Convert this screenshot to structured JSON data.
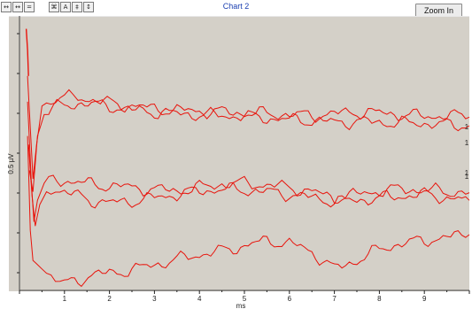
{
  "toolbar": {
    "buttons_left": [
      "↔",
      "↔",
      "="
    ],
    "buttons_mid": [
      "⌘",
      "A",
      "‡",
      "↕"
    ],
    "title": "Chart 2",
    "zoom_label": "Zoom In"
  },
  "chart_data": {
    "type": "line",
    "title": "Chart 2",
    "xlabel": "ms",
    "ylabel": "0.5 µV",
    "xlim": [
      0,
      10
    ],
    "x_ticks": [
      "1",
      "2",
      "3",
      "4",
      "5",
      "6",
      "7",
      "8",
      "9"
    ],
    "y_tick_count": 7,
    "series_end_labels": [
      "1",
      "1",
      "1",
      "1"
    ],
    "line_color": "#e8140c",
    "series": [
      {
        "values": [
          [
            0.18,
            0.9
          ],
          [
            0.25,
            0.2
          ],
          [
            0.3,
            -0.3
          ],
          [
            0.38,
            0.1
          ],
          [
            0.5,
            0.55
          ],
          [
            0.7,
            0.62
          ],
          [
            0.9,
            0.64
          ],
          [
            1.1,
            0.65
          ],
          [
            1.3,
            0.66
          ],
          [
            1.55,
            0.63
          ],
          [
            1.8,
            0.6
          ],
          [
            2.1,
            0.58
          ],
          [
            2.5,
            0.55
          ],
          [
            3.0,
            0.52
          ],
          [
            3.5,
            0.5
          ],
          [
            4.0,
            0.49
          ],
          [
            4.5,
            0.48
          ],
          [
            5.0,
            0.47
          ],
          [
            5.5,
            0.46
          ],
          [
            6.0,
            0.45
          ],
          [
            6.5,
            0.44
          ],
          [
            7.0,
            0.46
          ],
          [
            7.5,
            0.48
          ],
          [
            8.0,
            0.47
          ],
          [
            8.5,
            0.45
          ],
          [
            9.0,
            0.43
          ],
          [
            9.5,
            0.44
          ],
          [
            10.0,
            0.42
          ]
        ]
      },
      {
        "values": [
          [
            0.22,
            -0.2
          ],
          [
            0.3,
            -0.45
          ],
          [
            0.4,
            0.2
          ],
          [
            0.55,
            0.45
          ],
          [
            0.75,
            0.52
          ],
          [
            1.0,
            0.56
          ],
          [
            1.3,
            0.58
          ],
          [
            1.6,
            0.57
          ],
          [
            2.0,
            0.55
          ],
          [
            2.5,
            0.5
          ],
          [
            3.0,
            0.48
          ],
          [
            3.5,
            0.46
          ],
          [
            4.0,
            0.45
          ],
          [
            4.5,
            0.44
          ],
          [
            5.0,
            0.43
          ],
          [
            5.5,
            0.41
          ],
          [
            6.0,
            0.39
          ],
          [
            6.5,
            0.38
          ],
          [
            7.0,
            0.36
          ],
          [
            7.5,
            0.37
          ],
          [
            8.0,
            0.36
          ],
          [
            8.5,
            0.35
          ],
          [
            9.0,
            0.35
          ],
          [
            9.5,
            0.33
          ],
          [
            10.0,
            0.32
          ]
        ]
      },
      {
        "values": [
          [
            0.18,
            0.6
          ],
          [
            0.26,
            -0.3
          ],
          [
            0.32,
            -0.8
          ],
          [
            0.4,
            -0.55
          ],
          [
            0.55,
            -0.35
          ],
          [
            0.75,
            -0.3
          ],
          [
            1.0,
            -0.32
          ],
          [
            1.3,
            -0.34
          ],
          [
            1.6,
            -0.36
          ],
          [
            2.0,
            -0.38
          ],
          [
            2.5,
            -0.4
          ],
          [
            3.0,
            -0.42
          ],
          [
            3.5,
            -0.44
          ],
          [
            4.0,
            -0.4
          ],
          [
            4.5,
            -0.36
          ],
          [
            5.0,
            -0.35
          ],
          [
            5.5,
            -0.37
          ],
          [
            6.0,
            -0.4
          ],
          [
            6.5,
            -0.45
          ],
          [
            7.0,
            -0.52
          ],
          [
            7.5,
            -0.48
          ],
          [
            8.0,
            -0.44
          ],
          [
            8.5,
            -0.42
          ],
          [
            9.0,
            -0.43
          ],
          [
            9.5,
            -0.45
          ],
          [
            10.0,
            -0.46
          ]
        ]
      },
      {
        "values": [
          [
            0.2,
            0.1
          ],
          [
            0.28,
            -0.5
          ],
          [
            0.35,
            -0.85
          ],
          [
            0.45,
            -0.6
          ],
          [
            0.6,
            -0.45
          ],
          [
            0.8,
            -0.42
          ],
          [
            1.0,
            -0.45
          ],
          [
            1.3,
            -0.5
          ],
          [
            1.6,
            -0.55
          ],
          [
            2.0,
            -0.58
          ],
          [
            2.5,
            -0.56
          ],
          [
            3.0,
            -0.52
          ],
          [
            3.5,
            -0.48
          ],
          [
            4.0,
            -0.44
          ],
          [
            4.5,
            -0.42
          ],
          [
            5.0,
            -0.43
          ],
          [
            5.5,
            -0.45
          ],
          [
            6.0,
            -0.48
          ],
          [
            6.5,
            -0.52
          ],
          [
            7.0,
            -0.56
          ],
          [
            7.5,
            -0.55
          ],
          [
            8.0,
            -0.52
          ],
          [
            8.5,
            -0.5
          ],
          [
            9.0,
            -0.48
          ],
          [
            9.5,
            -0.52
          ],
          [
            10.0,
            -0.55
          ]
        ]
      },
      {
        "values": [
          [
            0.18,
            0.2
          ],
          [
            0.24,
            -0.9
          ],
          [
            0.3,
            -1.25
          ],
          [
            0.4,
            -1.3
          ],
          [
            0.6,
            -1.4
          ],
          [
            0.8,
            -1.48
          ],
          [
            1.0,
            -1.52
          ],
          [
            1.3,
            -1.48
          ],
          [
            1.6,
            -1.42
          ],
          [
            2.0,
            -1.4
          ],
          [
            2.5,
            -1.36
          ],
          [
            3.0,
            -1.3
          ],
          [
            3.5,
            -1.24
          ],
          [
            4.0,
            -1.18
          ],
          [
            4.5,
            -1.14
          ],
          [
            5.0,
            -1.08
          ],
          [
            5.5,
            -1.02
          ],
          [
            6.0,
            -1.05
          ],
          [
            6.5,
            -1.15
          ],
          [
            7.0,
            -1.35
          ],
          [
            7.5,
            -1.25
          ],
          [
            8.0,
            -1.12
          ],
          [
            8.5,
            -1.05
          ],
          [
            9.0,
            -1.02
          ],
          [
            9.5,
            -0.98
          ],
          [
            10.0,
            -0.95
          ]
        ]
      }
    ],
    "ylim": [
      -1.6,
      1.6
    ]
  }
}
